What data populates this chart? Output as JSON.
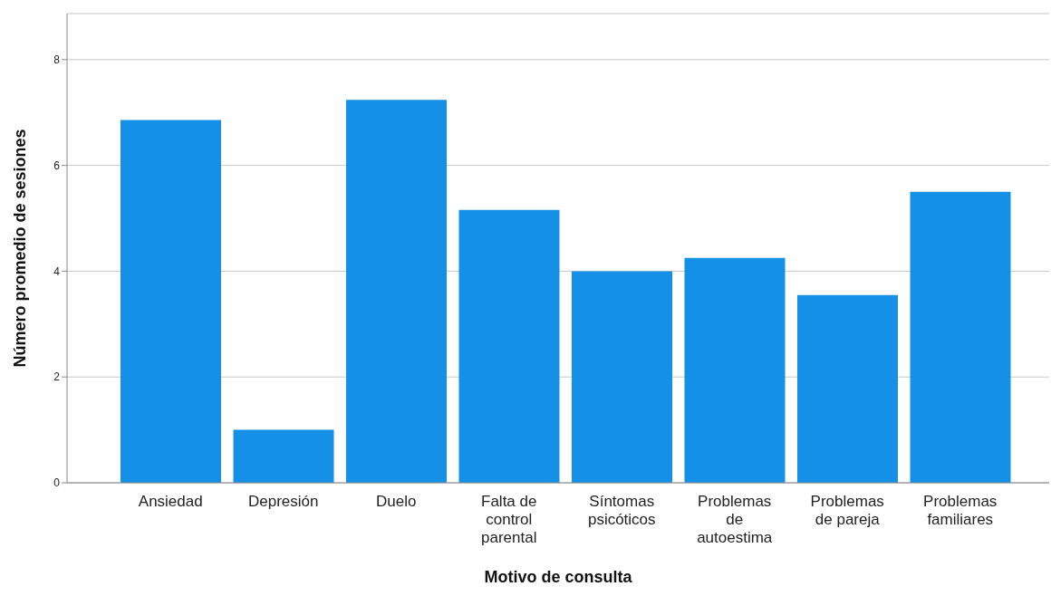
{
  "chart_data": {
    "type": "bar",
    "xlabel": "Motivo de consulta",
    "ylabel": "Número promedio de sesiones",
    "categories": [
      "Ansiedad",
      "Depresión",
      "Duelo",
      "Falta de control parental",
      "Síntomas psicóticos",
      "Problemas de autoestima",
      "Problemas de pareja",
      "Problemas familiares"
    ],
    "values": [
      6.86,
      1.0,
      7.24,
      5.16,
      4.0,
      4.25,
      3.55,
      5.5
    ],
    "color": "#1490e6",
    "ylim": [
      0,
      8.87
    ],
    "yticks": [
      0,
      2,
      4,
      6,
      8
    ],
    "grid": "y",
    "legend": false
  }
}
